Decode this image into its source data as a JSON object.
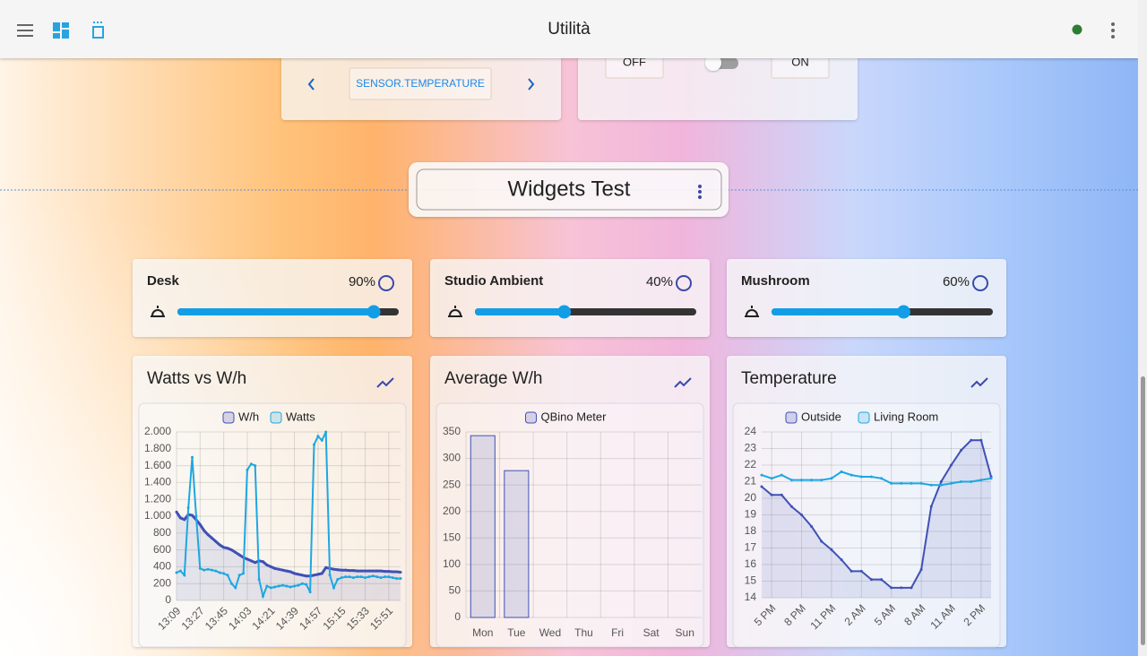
{
  "header": {
    "title": "Utilità"
  },
  "top_cards": {
    "entity": "SENSOR.TEMPERATURE",
    "off": "OFF",
    "on": "ON"
  },
  "section": {
    "title": "Widgets Test"
  },
  "lights": [
    {
      "name": "Desk",
      "value": 90,
      "value_label": "90%"
    },
    {
      "name": "Studio Ambient",
      "value": 40,
      "value_label": "40%"
    },
    {
      "name": "Mushroom",
      "value": 60,
      "value_label": "60%"
    }
  ],
  "chart_data": [
    {
      "type": "line",
      "title": "Watts vs W/h",
      "categories": [
        "13:09",
        null,
        null,
        null,
        null,
        null,
        "13:27",
        null,
        null,
        null,
        null,
        null,
        "13:45",
        null,
        null,
        null,
        null,
        null,
        "14:03",
        null,
        null,
        null,
        null,
        null,
        "14:21",
        null,
        null,
        null,
        null,
        null,
        "14:39",
        null,
        null,
        null,
        null,
        null,
        "14:57",
        null,
        null,
        null,
        null,
        null,
        "15:15",
        null,
        null,
        null,
        null,
        null,
        "15:33",
        null,
        null,
        null,
        null,
        null,
        "15:51",
        null,
        null,
        null
      ],
      "series": [
        {
          "name": "W/h",
          "color": "#3f51b5",
          "values": [
            1050,
            980,
            960,
            1020,
            1010,
            960,
            900,
            830,
            780,
            740,
            700,
            660,
            630,
            620,
            600,
            570,
            540,
            510,
            490,
            470,
            450,
            470,
            460,
            420,
            400,
            380,
            370,
            360,
            350,
            340,
            320,
            310,
            300,
            290,
            290,
            300,
            310,
            320,
            390,
            380,
            370,
            365,
            360,
            360,
            355,
            355,
            350,
            350,
            350,
            350,
            350,
            350,
            350,
            345,
            345,
            340,
            340,
            335
          ]
        },
        {
          "name": "Watts",
          "color": "#1ea7e1",
          "values": [
            330,
            350,
            300,
            1100,
            1700,
            1000,
            380,
            360,
            370,
            360,
            350,
            330,
            320,
            300,
            200,
            150,
            300,
            320,
            1550,
            1620,
            1600,
            250,
            50,
            170,
            150,
            160,
            170,
            180,
            170,
            160,
            170,
            180,
            200,
            190,
            100,
            1850,
            1950,
            1900,
            2000,
            300,
            150,
            250,
            270,
            280,
            280,
            270,
            280,
            280,
            270,
            280,
            290,
            280,
            270,
            280,
            280,
            270,
            260,
            260
          ]
        }
      ],
      "ylim": [
        0,
        2000
      ],
      "yticks": [
        0,
        200,
        400,
        600,
        800,
        {
          "value": 1000,
          "label": "1.000"
        },
        {
          "value": 1200,
          "label": "1.200"
        },
        {
          "value": 1400,
          "label": "1.400"
        },
        {
          "value": 1600,
          "label": "1.600"
        },
        {
          "value": 1800,
          "label": "1.800"
        },
        {
          "value": 2000,
          "label": "2.000"
        }
      ],
      "grid": true
    },
    {
      "type": "bar",
      "title": "Average W/h",
      "categories": [
        "Mon",
        "Tue",
        "Wed",
        "Thu",
        "Fri",
        "Sat",
        "Sun"
      ],
      "series": [
        {
          "name": "QBino Meter",
          "color": "#3f51b5",
          "values": [
            343,
            277,
            null,
            null,
            null,
            null,
            null
          ]
        }
      ],
      "ylim": [
        0,
        350
      ],
      "yticks": [
        0,
        50,
        100,
        150,
        200,
        250,
        300,
        350
      ],
      "grid": true
    },
    {
      "type": "line",
      "title": "Temperature",
      "categories": [
        null,
        "5 PM",
        null,
        null,
        "8 PM",
        null,
        null,
        "11 PM",
        null,
        null,
        "2 AM",
        null,
        null,
        "5 AM",
        null,
        null,
        "8 AM",
        null,
        null,
        "11 AM",
        null,
        null,
        "2 PM",
        null
      ],
      "series": [
        {
          "name": "Outside",
          "color": "#3f51b5",
          "values": [
            20.7,
            20.2,
            20.2,
            19.5,
            19.0,
            18.3,
            17.4,
            16.9,
            16.3,
            15.6,
            15.6,
            15.1,
            15.1,
            14.6,
            14.6,
            14.6,
            15.7,
            19.5,
            21.0,
            22.0,
            22.9,
            23.5,
            23.5,
            21.3
          ]
        },
        {
          "name": "Living Room",
          "color": "#1ea7e1",
          "values": [
            21.4,
            21.2,
            21.4,
            21.1,
            21.1,
            21.1,
            21.1,
            21.2,
            21.6,
            21.4,
            21.3,
            21.3,
            21.2,
            20.9,
            20.9,
            20.9,
            20.9,
            20.8,
            20.8,
            20.9,
            21.0,
            21.0,
            21.1,
            21.2
          ]
        }
      ],
      "ylim": [
        14,
        24
      ],
      "yticks": [
        14,
        15,
        16,
        17,
        18,
        19,
        20,
        21,
        22,
        23,
        24
      ],
      "grid": true
    }
  ]
}
